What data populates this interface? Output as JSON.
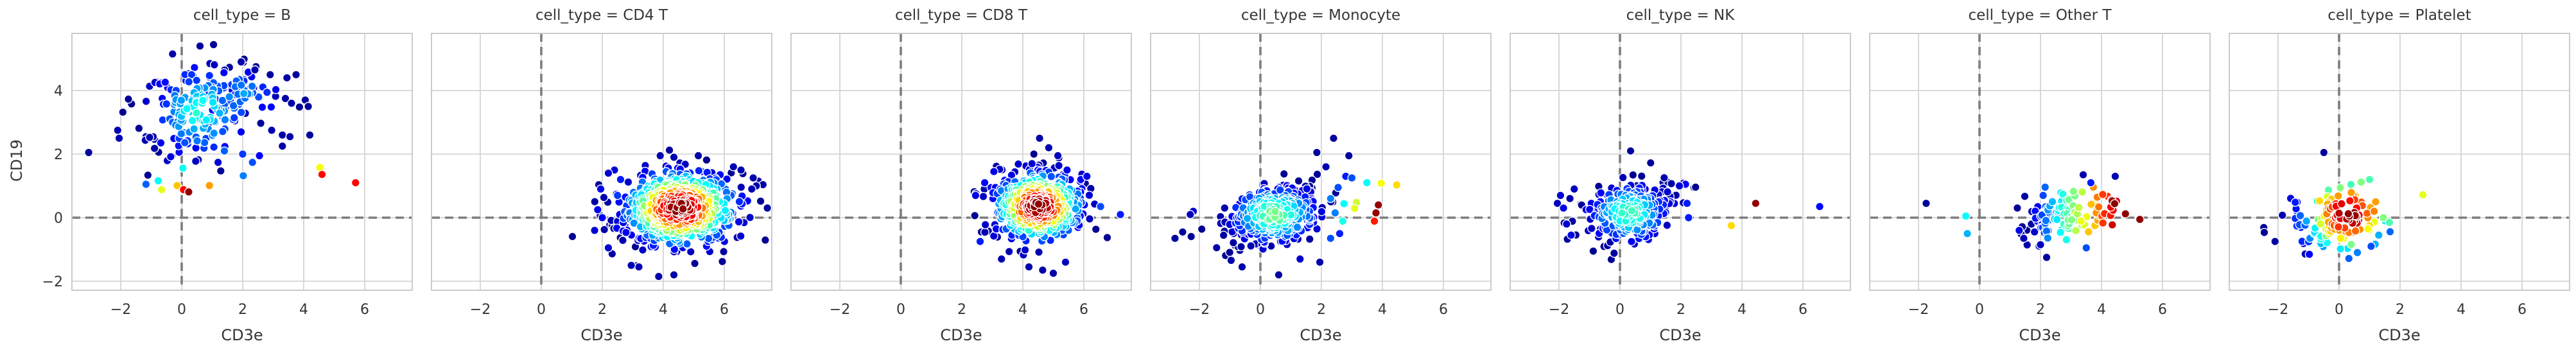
{
  "chart_data": {
    "type": "scatter",
    "facet_field": "cell_type",
    "xlabel": "CD3e",
    "ylabel": "CD19",
    "xticks": [
      -2,
      0,
      2,
      4,
      6
    ],
    "xtick_labels": [
      "−2",
      "0",
      "2",
      "4",
      "6"
    ],
    "yticks": [
      -2,
      0,
      2,
      4
    ],
    "ytick_labels": [
      "−2",
      "0",
      "2",
      "4"
    ],
    "xlim": [
      -3.6,
      7.56
    ],
    "ylim": [
      -2.28,
      5.8
    ],
    "grid": true,
    "reference_lines": {
      "x": 0,
      "y": 0,
      "style": "dashed"
    },
    "color_encoding": "point density (jet colormap: dark blue = low, dark red = high)",
    "facets": [
      {
        "label": "B",
        "title": "cell_type = B",
        "clusters": [
          {
            "cx": 0.55,
            "cy": 3.35,
            "sx": 0.85,
            "sy": 0.8,
            "corr": 0.1,
            "n": 165,
            "tmax": 0.38,
            "mode": "radial"
          },
          {
            "cx": 1.9,
            "cy": 3.85,
            "sx": 0.75,
            "sy": 0.5,
            "corr": 0.0,
            "n": 55,
            "tmax": 0.27,
            "mode": "radial"
          }
        ],
        "outliers": [
          [
            -3.05,
            2.05,
            0.03
          ],
          [
            -2.1,
            2.75,
            0.05
          ],
          [
            -2.05,
            2.5,
            0.05
          ],
          [
            -1.17,
            1.05,
            0.22
          ],
          [
            -0.77,
            1.16,
            0.38
          ],
          [
            -0.66,
            0.88,
            0.6
          ],
          [
            -0.15,
            1.01,
            0.68
          ],
          [
            0.06,
            0.88,
            0.87
          ],
          [
            0.23,
            0.81,
            0.98
          ],
          [
            0.91,
            1.01,
            0.72
          ],
          [
            0.04,
            1.56,
            0.38
          ],
          [
            2.02,
            1.32,
            0.25
          ],
          [
            2.32,
            1.74,
            0.2
          ],
          [
            4.53,
            1.58,
            0.62
          ],
          [
            4.6,
            1.36,
            0.87
          ],
          [
            5.7,
            1.1,
            0.87
          ],
          [
            3.4,
            3.75,
            0.04
          ],
          [
            3.6,
            3.6,
            0.04
          ],
          [
            4.05,
            3.7,
            0.03
          ],
          [
            4.15,
            3.5,
            0.03
          ],
          [
            2.95,
            2.75,
            0.05
          ],
          [
            3.3,
            2.6,
            0.04
          ],
          [
            3.55,
            2.55,
            0.04
          ],
          [
            3.3,
            2.25,
            0.04
          ],
          [
            4.2,
            2.6,
            0.03
          ],
          [
            2.4,
            4.65,
            0.04
          ],
          [
            2.9,
            4.5,
            0.03
          ],
          [
            0.6,
            5.4,
            0.03
          ],
          [
            -0.3,
            5.15,
            0.04
          ],
          [
            1.95,
            4.9,
            0.04
          ],
          [
            2.0,
            2.0,
            0.18
          ],
          [
            1.4,
            2.1,
            0.22
          ],
          [
            2.55,
            1.95,
            0.12
          ],
          [
            3.45,
            4.4,
            0.04
          ],
          [
            3.75,
            4.5,
            0.03
          ]
        ]
      },
      {
        "label": "CD4 T",
        "title": "cell_type = CD4 T",
        "clusters": [
          {
            "cx": 4.55,
            "cy": 0.3,
            "sx": 0.95,
            "sy": 0.6,
            "corr": 0.1,
            "n": 640,
            "tmax": 0.99,
            "mode": "radial"
          }
        ],
        "outliers": [
          [
            1.95,
            0.9,
            0.1
          ],
          [
            1.85,
            0.25,
            0.12
          ],
          [
            2.0,
            0.0,
            0.12
          ],
          [
            1.75,
            -0.4,
            0.08
          ],
          [
            2.2,
            -0.95,
            0.08
          ],
          [
            3.2,
            -1.55,
            0.05
          ],
          [
            2.95,
            -1.5,
            0.05
          ],
          [
            3.85,
            -1.85,
            0.04
          ],
          [
            4.35,
            -1.8,
            0.04
          ],
          [
            2.4,
            1.5,
            0.08
          ],
          [
            2.2,
            1.4,
            0.08
          ],
          [
            3.9,
            1.95,
            0.05
          ],
          [
            4.35,
            1.9,
            0.05
          ],
          [
            5.15,
            1.95,
            0.04
          ],
          [
            6.3,
            1.6,
            0.05
          ],
          [
            6.55,
            1.5,
            0.05
          ],
          [
            6.95,
            1.25,
            0.04
          ],
          [
            7.05,
            1.0,
            0.04
          ],
          [
            6.9,
            0.9,
            0.05
          ],
          [
            2.6,
            1.2,
            0.15
          ],
          [
            2.5,
            0.7,
            0.18
          ]
        ]
      },
      {
        "label": "CD8 T",
        "title": "cell_type = CD8 T",
        "clusters": [
          {
            "cx": 4.5,
            "cy": 0.35,
            "sx": 0.75,
            "sy": 0.55,
            "corr": 0.05,
            "n": 470,
            "tmax": 0.99,
            "mode": "radial"
          }
        ],
        "outliers": [
          [
            4.55,
            2.5,
            0.04
          ],
          [
            4.85,
            2.2,
            0.05
          ],
          [
            5.15,
            1.95,
            0.06
          ],
          [
            4.3,
            1.7,
            0.08
          ],
          [
            5.45,
            1.5,
            0.1
          ],
          [
            3.05,
            1.45,
            0.1
          ],
          [
            2.75,
            1.1,
            0.12
          ],
          [
            7.2,
            0.1,
            0.15
          ],
          [
            6.55,
            0.35,
            0.2
          ],
          [
            3.3,
            -1.3,
            0.05
          ],
          [
            4.2,
            -1.55,
            0.04
          ],
          [
            4.65,
            -1.65,
            0.04
          ],
          [
            5.4,
            -1.4,
            0.06
          ],
          [
            5.0,
            -1.75,
            0.04
          ],
          [
            2.6,
            -0.75,
            0.15
          ],
          [
            2.45,
            0.7,
            0.1
          ],
          [
            5.9,
            1.2,
            0.12
          ],
          [
            6.1,
            1.3,
            0.1
          ]
        ]
      },
      {
        "label": "Monocyte",
        "title": "cell_type = Monocyte",
        "clusters": [
          {
            "cx": 0.45,
            "cy": 0.1,
            "sx": 0.8,
            "sy": 0.5,
            "corr": 0.4,
            "n": 380,
            "tmax": 0.46,
            "mode": "radial"
          }
        ],
        "outliers": [
          [
            3.49,
            1.1,
            0.38
          ],
          [
            3.96,
            1.08,
            0.62
          ],
          [
            4.47,
            1.03,
            0.66
          ],
          [
            3.87,
            0.4,
            0.98
          ],
          [
            3.79,
            0.15,
            0.98
          ],
          [
            3.74,
            -0.11,
            0.85
          ],
          [
            3.15,
            0.48,
            0.58
          ],
          [
            3.09,
            0.29,
            0.6
          ],
          [
            2.74,
            0.44,
            0.38
          ],
          [
            2.7,
            -0.11,
            0.4
          ],
          [
            2.4,
            2.5,
            0.03
          ],
          [
            1.85,
            2.05,
            0.03
          ],
          [
            2.9,
            1.95,
            0.03
          ],
          [
            2.8,
            1.3,
            0.15
          ],
          [
            3.0,
            1.25,
            0.2
          ],
          [
            2.55,
            0.95,
            0.2
          ],
          [
            2.3,
            0.6,
            0.25
          ],
          [
            2.45,
            0.15,
            0.25
          ],
          [
            2.6,
            -0.5,
            0.15
          ],
          [
            2.3,
            -0.65,
            0.2
          ],
          [
            -2.55,
            -0.45,
            0.03
          ],
          [
            -2.8,
            -0.65,
            0.03
          ],
          [
            -2.2,
            0.2,
            0.08
          ],
          [
            -2.3,
            0.1,
            0.06
          ],
          [
            1.95,
            -1.4,
            0.04
          ],
          [
            0.6,
            -1.8,
            0.03
          ],
          [
            -0.6,
            -1.55,
            0.04
          ],
          [
            1.3,
            -1.3,
            0.08
          ],
          [
            2.15,
            1.6,
            0.05
          ]
        ]
      },
      {
        "label": "NK",
        "title": "cell_type = NK",
        "clusters": [
          {
            "cx": 0.3,
            "cy": 0.15,
            "sx": 0.72,
            "sy": 0.5,
            "corr": 0.25,
            "n": 285,
            "tmax": 0.42,
            "mode": "radial"
          }
        ],
        "outliers": [
          [
            4.45,
            0.45,
            0.98
          ],
          [
            3.65,
            -0.25,
            0.66
          ],
          [
            6.55,
            0.35,
            0.13
          ],
          [
            0.35,
            2.1,
            0.03
          ],
          [
            2.15,
            1.05,
            0.12
          ],
          [
            2.2,
            0.45,
            0.15
          ],
          [
            2.25,
            0.0,
            0.15
          ],
          [
            -1.95,
            0.7,
            0.08
          ],
          [
            -2.05,
            0.45,
            0.06
          ],
          [
            -1.85,
            0.3,
            0.1
          ],
          [
            -1.75,
            -0.2,
            0.08
          ],
          [
            1.95,
            1.0,
            0.08
          ],
          [
            -1.6,
            -0.55,
            0.1
          ],
          [
            -1.5,
            0.9,
            0.06
          ]
        ]
      },
      {
        "label": "Other T",
        "title": "cell_type = Other T",
        "clusters": [
          {
            "cx": 2.95,
            "cy": 0.1,
            "sx": 0.72,
            "sy": 0.45,
            "corr": 0.15,
            "n": 115,
            "mode": "xgrad",
            "grad_x0": 1.5,
            "grad_x1": 4.7
          }
        ],
        "outliers": [
          [
            4.35,
            0.53,
            0.97
          ],
          [
            4.43,
            0.44,
            0.99
          ],
          [
            4.04,
            0.73,
            0.82
          ],
          [
            -1.75,
            0.45,
            0.03
          ],
          [
            -0.45,
            0.05,
            0.38
          ],
          [
            -0.4,
            -0.5,
            0.3
          ],
          [
            2.2,
            -1.25,
            0.03
          ],
          [
            3.4,
            1.35,
            0.04
          ],
          [
            4.45,
            1.3,
            0.05
          ],
          [
            3.65,
            1.1,
            0.15
          ],
          [
            3.5,
            -0.95,
            0.2
          ],
          [
            2.0,
            -0.85,
            0.06
          ],
          [
            1.45,
            -0.65,
            0.05
          ],
          [
            1.3,
            -0.4,
            0.1
          ]
        ]
      },
      {
        "label": "Platelet",
        "title": "cell_type = Platelet",
        "clusters": [
          {
            "cx": -0.15,
            "cy": 0.0,
            "sx": 0.72,
            "sy": 0.48,
            "corr": 0.0,
            "n": 120,
            "tmax": 0.98,
            "mode": "radial",
            "color_center": [
              0.3,
              0.1
            ],
            "color_sigma": [
              0.85,
              0.75
            ]
          }
        ],
        "outliers": [
          [
            2.75,
            0.72,
            0.6
          ],
          [
            1.2,
            0.5,
            0.72
          ],
          [
            1.45,
            0.0,
            0.5
          ],
          [
            0.95,
            -0.35,
            0.62
          ],
          [
            1.15,
            0.2,
            0.75
          ],
          [
            1.65,
            -0.15,
            0.45
          ],
          [
            -2.1,
            -0.75,
            0.03
          ],
          [
            1.05,
            -0.9,
            0.2
          ],
          [
            0.6,
            -1.1,
            0.25
          ],
          [
            -0.5,
            2.05,
            0.03
          ],
          [
            1.3,
            -0.55,
            0.3
          ],
          [
            0.72,
            1.12,
            0.5
          ],
          [
            1.0,
            1.2,
            0.45
          ],
          [
            0.4,
            0.79,
            0.72
          ],
          [
            -0.64,
            0.53,
            0.66
          ]
        ]
      }
    ]
  },
  "style": {
    "background": "#ffffff",
    "grid_color": "#d4d4d4",
    "spine_color": "#cbcbcb",
    "refline_color": "#7d7d7d",
    "text_color": "#363636",
    "marker_edge_color": "#ffffff"
  }
}
